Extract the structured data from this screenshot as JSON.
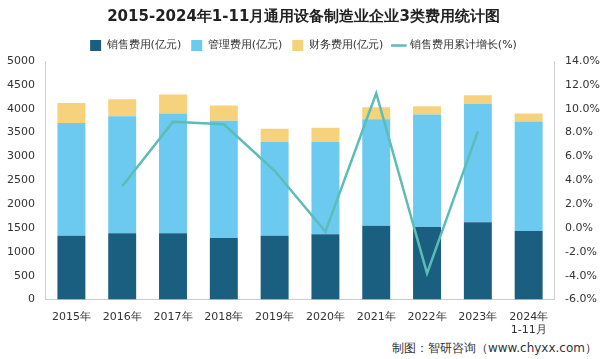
{
  "chart_data": {
    "type": "bar",
    "title": "2015-2024年1-11月通用设备制造业企业3类费用统计图",
    "source": "制图：智研咨询（www.chyxx.com）",
    "categories": [
      "2015年",
      "2016年",
      "2017年",
      "2018年",
      "2019年",
      "2020年",
      "2021年",
      "2022年",
      "2023年",
      "2024年\n1-11月"
    ],
    "stacked": true,
    "legend": "top",
    "grid": false,
    "series": [
      {
        "name": "销售费用(亿元)",
        "color": "#1a5e80",
        "values": [
          1340,
          1390,
          1390,
          1290,
          1340,
          1370,
          1550,
          1520,
          1620,
          1440
        ]
      },
      {
        "name": "管理费用(亿元)",
        "color": "#6cc9f0",
        "values": [
          2360,
          2450,
          2510,
          2460,
          1960,
          1930,
          2230,
          2360,
          2480,
          2290
        ]
      },
      {
        "name": "财务费用(亿元)",
        "color": "#f7d27c",
        "values": [
          420,
          360,
          400,
          320,
          280,
          300,
          250,
          170,
          180,
          170
        ]
      },
      {
        "name": "销售费用累计增长(%)",
        "color": "#5bbcb8",
        "type": "line",
        "axis": "y2",
        "values": [
          null,
          3.5,
          8.9,
          8.7,
          4.8,
          -0.3,
          11.3,
          -3.8,
          8.1,
          null
        ]
      }
    ],
    "ylim": [
      0,
      5000
    ],
    "yticks": [
      0,
      500,
      1000,
      1500,
      2000,
      2500,
      3000,
      3500,
      4000,
      4500,
      5000
    ],
    "y2lim": [
      -6,
      14
    ],
    "y2ticks": [
      {
        "value": -6,
        "label": "-6.0%"
      },
      {
        "value": -4,
        "label": "-4.0%"
      },
      {
        "value": -2,
        "label": "-2.0%"
      },
      {
        "value": 0,
        "label": "0.0%"
      },
      {
        "value": 2,
        "label": "2.0%"
      },
      {
        "value": 4,
        "label": "4.0%"
      },
      {
        "value": 6,
        "label": "6.0%"
      },
      {
        "value": 8,
        "label": "8.0%"
      },
      {
        "value": 10,
        "label": "10.0%"
      },
      {
        "value": 12,
        "label": "12.0%"
      },
      {
        "value": 14,
        "label": "14.0%"
      }
    ]
  }
}
